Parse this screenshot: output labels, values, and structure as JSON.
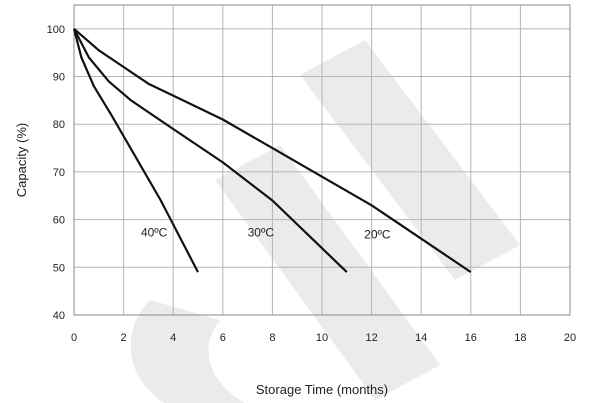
{
  "chart_data": {
    "type": "line",
    "title": "",
    "xlabel": "Storage Time (months)",
    "ylabel": "Capacity (%)",
    "xlim": [
      0,
      20
    ],
    "ylim": [
      40,
      105
    ],
    "xticks": [
      0,
      2,
      4,
      6,
      8,
      10,
      12,
      14,
      16,
      18,
      20
    ],
    "yticks": [
      40,
      50,
      60,
      70,
      80,
      90,
      100
    ],
    "grid": true,
    "legend": "none",
    "line_color": "#111111",
    "series": [
      {
        "name": "40ºC",
        "points": [
          [
            0,
            100
          ],
          [
            0.3,
            94
          ],
          [
            0.8,
            88
          ],
          [
            1.5,
            82
          ],
          [
            2.5,
            73
          ],
          [
            3.5,
            64
          ],
          [
            4.4,
            55
          ],
          [
            5,
            49
          ]
        ]
      },
      {
        "name": "30ºC",
        "points": [
          [
            0,
            100
          ],
          [
            0.6,
            94
          ],
          [
            1.4,
            89
          ],
          [
            2.3,
            85
          ],
          [
            4,
            79
          ],
          [
            6,
            72
          ],
          [
            8,
            64
          ],
          [
            10,
            54
          ],
          [
            11,
            49
          ]
        ]
      },
      {
        "name": "20ºC",
        "points": [
          [
            0,
            100
          ],
          [
            1,
            95.5
          ],
          [
            2,
            92
          ],
          [
            3,
            88.5
          ],
          [
            4,
            86
          ],
          [
            6,
            81
          ],
          [
            8,
            75
          ],
          [
            10,
            69
          ],
          [
            12,
            63
          ],
          [
            14,
            56
          ],
          [
            16,
            49
          ]
        ]
      }
    ],
    "series_label_positions": [
      [
        2.7,
        56.5
      ],
      [
        7,
        56.5
      ],
      [
        11.7,
        56
      ]
    ],
    "watermark_color": "#ebebeb"
  }
}
